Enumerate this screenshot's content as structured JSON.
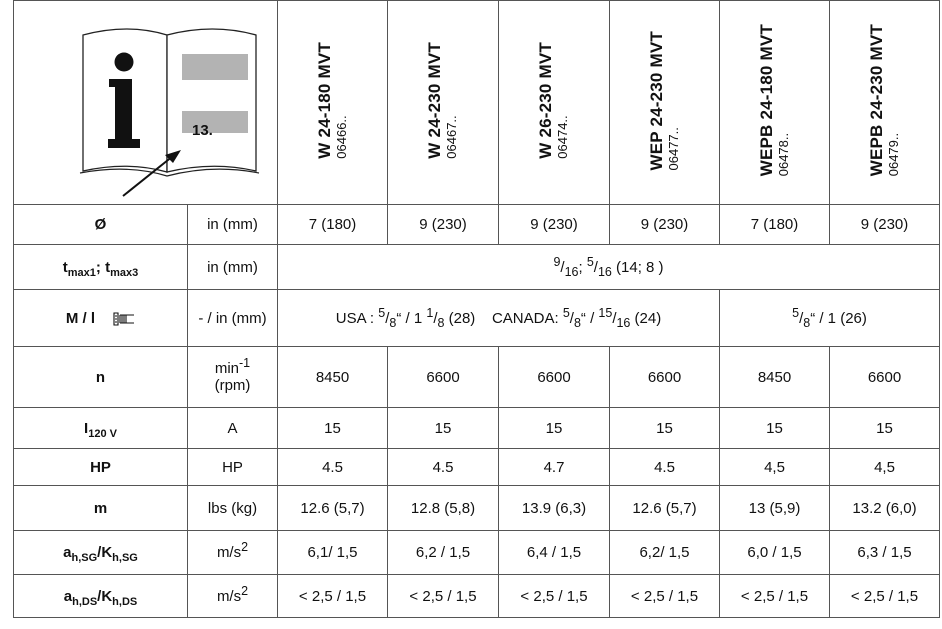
{
  "icon_page_number": "13.",
  "models": [
    {
      "name": "W 24-180 MVT",
      "code": "06466.."
    },
    {
      "name": "W 24-230 MVT",
      "code": "06467.."
    },
    {
      "name": "W 26-230 MVT",
      "code": "06474.."
    },
    {
      "name": "WEP 24-230 MVT",
      "code": "06477.."
    },
    {
      "name": "WEPB 24-180 MVT",
      "code": "06478.."
    },
    {
      "name": "WEPB 24-230 MVT",
      "code": "06479.."
    }
  ],
  "rows": {
    "diameter": {
      "label": "Ø",
      "unit": "in (mm)",
      "values": [
        "7 (180)",
        "9 (230)",
        "9 (230)",
        "9 (230)",
        "7 (180)",
        "9 (230)"
      ]
    },
    "tmax": {
      "label_main": "t",
      "label_sub1": "max1",
      "label_sep": "; t",
      "label_sub2": "max3",
      "unit": "in (mm)",
      "sup1": "9",
      "den1": "16",
      "sep": "; ",
      "sup2": "5",
      "den2": "16",
      "suffix": " (14; 8 )"
    },
    "thread": {
      "label": "M / l",
      "unit": "- / in (mm)",
      "usa_prefix": "USA : ",
      "usa_num": "5",
      "usa_den": "8",
      "usa_mid": "“ / 1 ",
      "usa_num2": "1",
      "usa_den2": "8",
      "usa_suffix": " (28)",
      "can_prefix": "CANADA: ",
      "can_num": "5",
      "can_den": "8",
      "can_mid": "“ / ",
      "can_num2": "15",
      "can_den2": "16",
      "can_suffix": " (24)",
      "wepb_num": "5",
      "wepb_den": "8",
      "wepb_suffix": "“ / 1 (26)"
    },
    "speed": {
      "label": "n",
      "unit_main": "min",
      "unit_sup": "-1",
      "unit_sub": "(rpm)",
      "values": [
        "8450",
        "6600",
        "6600",
        "6600",
        "8450",
        "6600"
      ]
    },
    "current": {
      "label": "I",
      "label_sub": "120 V",
      "unit": "A",
      "values": [
        "15",
        "15",
        "15",
        "15",
        "15",
        "15"
      ]
    },
    "hp": {
      "label": "HP",
      "unit": "HP",
      "values": [
        "4.5",
        "4.5",
        "4.7",
        "4.5",
        "4,5",
        "4,5"
      ]
    },
    "mass": {
      "label": "m",
      "unit": "lbs (kg)",
      "values": [
        "12.6 (5,7)",
        "12.8 (5,8)",
        "13.9 (6,3)",
        "12.6 (5,7)",
        "13 (5,9)",
        "13.2 (6,0)"
      ]
    },
    "vib_sg": {
      "label_a": "a",
      "sub_a": "h,SG",
      "label_k": "/K",
      "sub_k": "h,SG",
      "unit": "m/s",
      "unit_sup": "2",
      "values": [
        "6,1/ 1,5",
        "6,2 / 1,5",
        "6,4 / 1,5",
        "6,2/ 1,5",
        "6,0 / 1,5",
        "6,3 / 1,5"
      ]
    },
    "vib_ds": {
      "label_a": "a",
      "sub_a": "h,DS",
      "label_k": "/K",
      "sub_k": "h,DS",
      "unit": "m/s",
      "unit_sup": "2",
      "values": [
        "< 2,5 / 1,5",
        "< 2,5 / 1,5",
        "< 2,5 / 1,5",
        "< 2,5 / 1,5",
        "< 2,5 / 1,5",
        "< 2,5 / 1,5"
      ]
    }
  }
}
